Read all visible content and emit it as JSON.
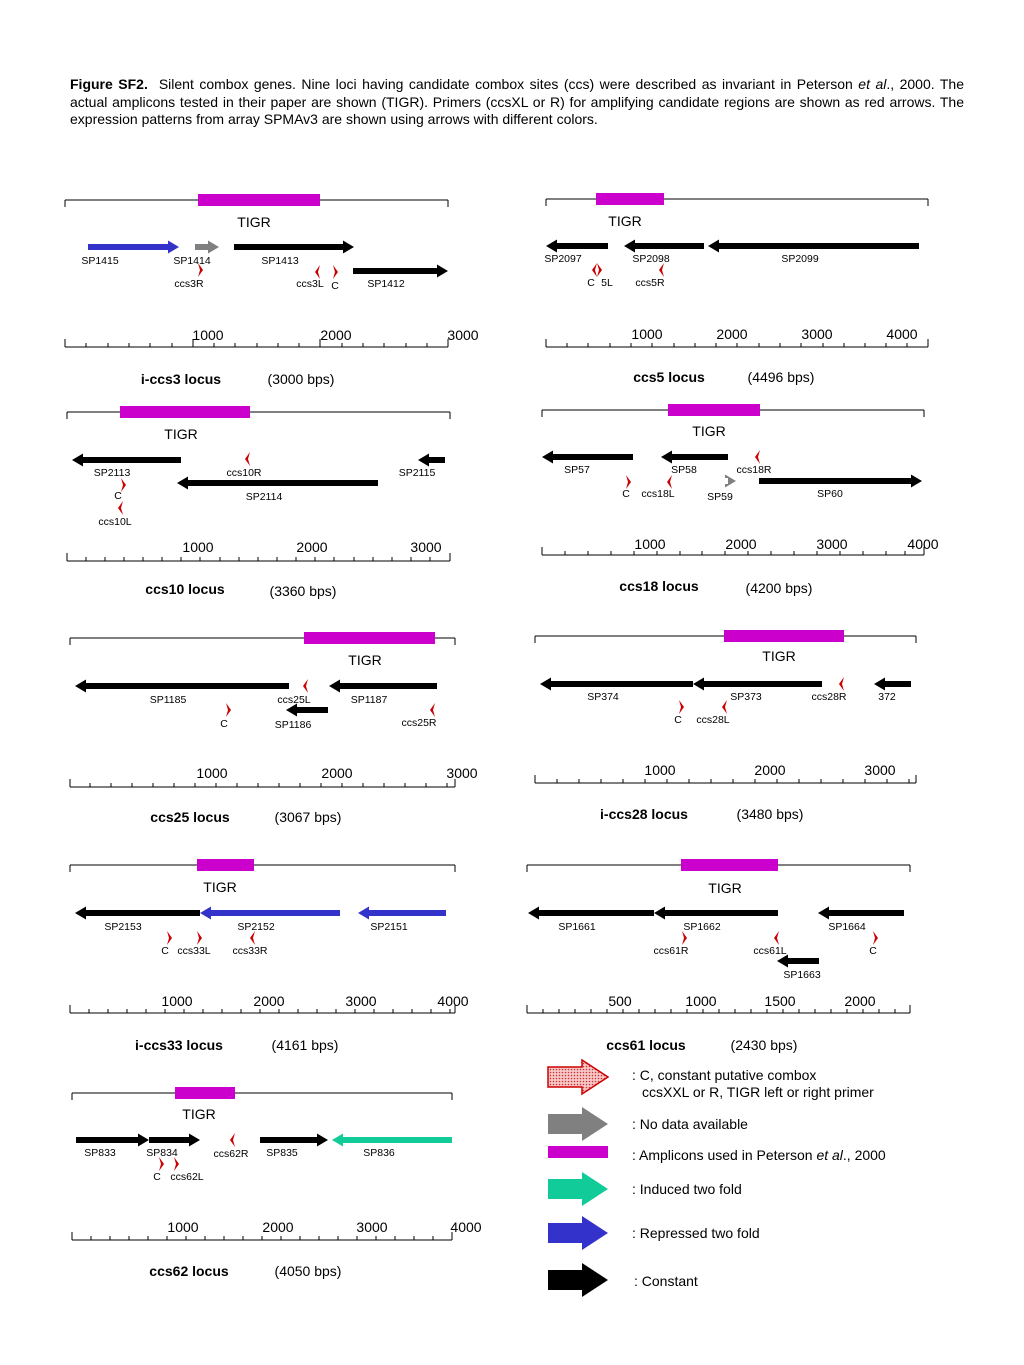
{
  "caption": {
    "label": "Figure SF2.",
    "part1": "Silent combox genes.  Nine loci having candidate combox sites (ccs) were described as invariant in Peterson ",
    "etal": "et al",
    "part2": "., 2000.  The actual amplicons tested in their paper are shown (TIGR).  Primers (ccsXL or R) for amplifying candidate regions are shown as red arrows.  The expression patterns from array SPMAv3 are shown using arrows with different colors."
  },
  "colors": {
    "tigr": "#cc00cc",
    "constant": "#000000",
    "repressed": "#3333cc",
    "induced": "#11cc99",
    "no_data": "#808080",
    "primer": "#cc0000"
  },
  "loci": [
    {
      "id": "ccs3",
      "name": "i-ccs3 locus",
      "size": "(3000 bps)",
      "tigr_label": "TIGR",
      "ticks": [
        "1000",
        "2000",
        "3000"
      ],
      "genes": [
        {
          "label": "SP1415",
          "expression": "repressed"
        },
        {
          "label": "SP1414",
          "expression": "no_data"
        },
        {
          "label": "SP1413",
          "expression": "constant"
        },
        {
          "label": "SP1412",
          "expression": "constant"
        }
      ],
      "sites": [
        "ccs3R",
        "ccs3L",
        "C"
      ]
    },
    {
      "id": "ccs5",
      "name": "ccs5 locus",
      "size": "(4496 bps)",
      "tigr_label": "TIGR",
      "ticks": [
        "1000",
        "2000",
        "3000",
        "4000"
      ],
      "genes": [
        {
          "label": "SP2097",
          "expression": "constant"
        },
        {
          "label": "SP2098",
          "expression": "constant"
        },
        {
          "label": "SP2099",
          "expression": "constant"
        }
      ],
      "sites": [
        "C",
        "5L",
        "ccs5R"
      ]
    },
    {
      "id": "ccs10",
      "name": "ccs10 locus",
      "size": "(3360 bps)",
      "tigr_label": "TIGR",
      "ticks": [
        "1000",
        "2000",
        "3000"
      ],
      "genes": [
        {
          "label": "SP2113",
          "expression": "constant"
        },
        {
          "label": "SP2114",
          "expression": "constant"
        },
        {
          "label": "SP2115",
          "expression": "constant"
        }
      ],
      "sites": [
        "ccs10R",
        "C",
        "ccs10L"
      ]
    },
    {
      "id": "ccs18",
      "name": "ccs18 locus",
      "size": "(4200 bps)",
      "tigr_label": "TIGR",
      "ticks": [
        "1000",
        "2000",
        "3000",
        "4000"
      ],
      "genes": [
        {
          "label": "SP57",
          "expression": "constant"
        },
        {
          "label": "SP58",
          "expression": "constant"
        },
        {
          "label": "SP59",
          "expression": "no_data"
        },
        {
          "label": "SP60",
          "expression": "constant"
        }
      ],
      "sites": [
        "ccs18R",
        "C",
        "ccs18L"
      ]
    },
    {
      "id": "ccs25",
      "name": "ccs25 locus",
      "size": "(3067 bps)",
      "tigr_label": "TIGR",
      "ticks": [
        "1000",
        "2000",
        "3000"
      ],
      "genes": [
        {
          "label": "SP1185",
          "expression": "constant"
        },
        {
          "label": "SP1186",
          "expression": "constant"
        },
        {
          "label": "SP1187",
          "expression": "constant"
        }
      ],
      "sites": [
        "ccs25L",
        "C",
        "ccs25R"
      ]
    },
    {
      "id": "ccs28",
      "name": "i-ccs28 locus",
      "size": "(3480 bps)",
      "tigr_label": "TIGR",
      "ticks": [
        "1000",
        "2000",
        "3000"
      ],
      "genes": [
        {
          "label": "SP374",
          "expression": "constant"
        },
        {
          "label": "SP373",
          "expression": "constant"
        },
        {
          "label": "372",
          "expression": "constant"
        }
      ],
      "sites": [
        "ccs28R",
        "C",
        "ccs28L"
      ]
    },
    {
      "id": "ccs33",
      "name": "i-ccs33 locus",
      "size": "(4161 bps)",
      "tigr_label": "TIGR",
      "ticks": [
        "1000",
        "2000",
        "3000",
        "4000"
      ],
      "genes": [
        {
          "label": "SP2153",
          "expression": "constant"
        },
        {
          "label": "SP2152",
          "expression": "repressed"
        },
        {
          "label": "SP2151",
          "expression": "repressed"
        }
      ],
      "sites": [
        "C",
        "ccs33L",
        "ccs33R"
      ]
    },
    {
      "id": "ccs61",
      "name": "ccs61 locus",
      "size": "(2430 bps)",
      "tigr_label": "TIGR",
      "ticks": [
        "500",
        "1000",
        "1500",
        "2000"
      ],
      "genes": [
        {
          "label": "SP1661",
          "expression": "constant"
        },
        {
          "label": "SP1662",
          "expression": "constant"
        },
        {
          "label": "SP1663",
          "expression": "constant"
        },
        {
          "label": "SP1664",
          "expression": "constant"
        }
      ],
      "sites": [
        "ccs61R",
        "ccs61L",
        "C"
      ]
    },
    {
      "id": "ccs62",
      "name": "ccs62 locus",
      "size": "(4050 bps)",
      "tigr_label": "TIGR",
      "ticks": [
        "1000",
        "2000",
        "3000",
        "4000"
      ],
      "genes": [
        {
          "label": "SP833",
          "expression": "constant"
        },
        {
          "label": "SP834",
          "expression": "constant"
        },
        {
          "label": "SP835",
          "expression": "constant"
        },
        {
          "label": "SP836",
          "expression": "induced"
        }
      ],
      "sites": [
        "ccs62R",
        "C",
        "ccs62L"
      ]
    }
  ],
  "legend": {
    "primer_line1": ": C, constant putative combox",
    "primer_line2": "ccsXXL or R,  TIGR left or right primer",
    "no_data": ": No data available",
    "amplicon_prefix": ": Amplicons used in Peterson ",
    "amplicon_etal": "et al",
    "amplicon_suffix": "., 2000",
    "induced": ": Induced two fold",
    "repressed": ": Repressed two fold",
    "constant": ": Constant"
  }
}
